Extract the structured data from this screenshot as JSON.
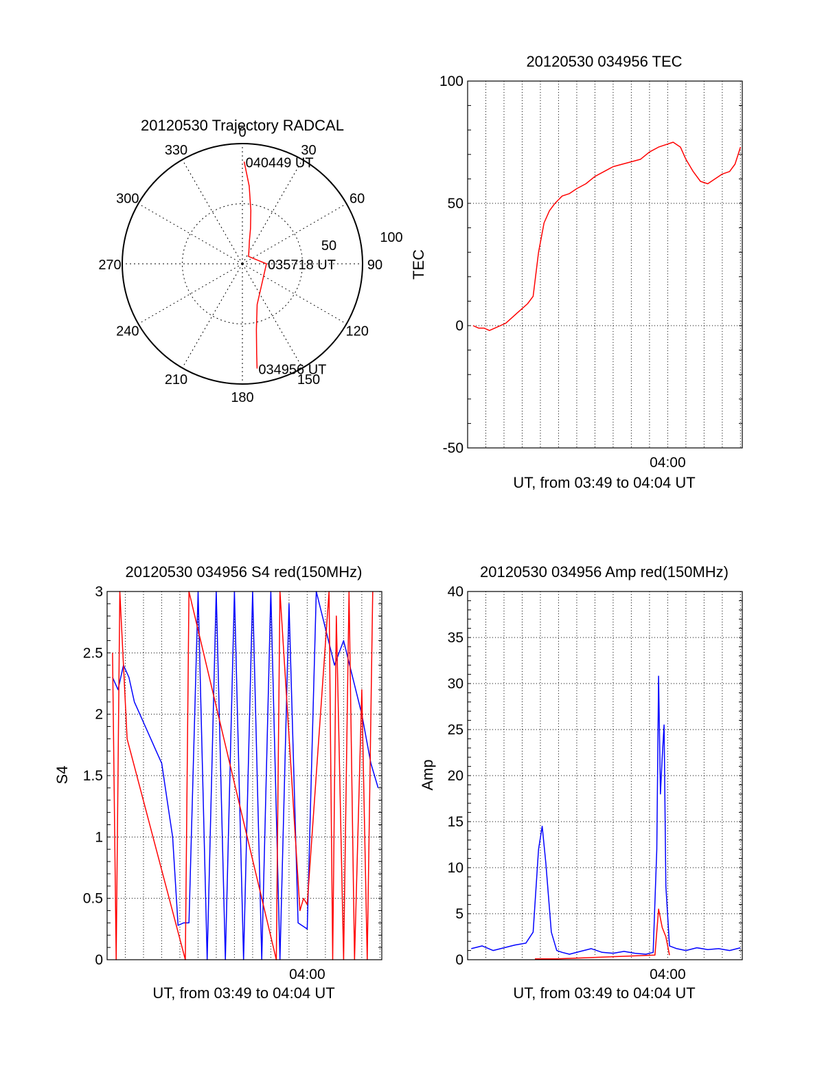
{
  "chart_data": [
    {
      "type": "polar",
      "title": "20120530 Trajectory RADCAL",
      "angle_labels": [
        "0",
        "30",
        "60",
        "90",
        "120",
        "150",
        "180",
        "210",
        "240",
        "270",
        "300",
        "330"
      ],
      "radius_labels": [
        "50",
        "100"
      ],
      "radius_max": 100,
      "trajectory_azimuth_deg": [
        1,
        5,
        9,
        13,
        17,
        22,
        40,
        90,
        160,
        168,
        171,
        172
      ],
      "trajectory_zenith": [
        85,
        65,
        45,
        30,
        20,
        15,
        8,
        20,
        36,
        56,
        76,
        88
      ],
      "trajectory_color": "#ff0000",
      "point_labels": [
        {
          "text": "040449 UT",
          "azimuth_deg": 1,
          "zenith": 85
        },
        {
          "text": "035718 UT",
          "azimuth_deg": 90,
          "zenith": 20
        },
        {
          "text": "034956 UT",
          "azimuth_deg": 172,
          "zenith": 88
        }
      ]
    },
    {
      "type": "line",
      "title": "20120530 034956 TEC",
      "ylabel": "TEC",
      "xlabel": "UT, from 03:49 to 04:04 UT",
      "xtick_labels": [
        {
          "t": 11,
          "label": "04:00"
        }
      ],
      "xlim": [
        0,
        15.1
      ],
      "ylim": [
        -50,
        100
      ],
      "yticks": [
        -50,
        0,
        50,
        100
      ],
      "grid": true,
      "series": [
        {
          "color": "#ff0000",
          "x": [
            0.3,
            0.6,
            0.9,
            1.2,
            1.5,
            1.8,
            2.1,
            2.4,
            2.7,
            3.0,
            3.3,
            3.6,
            3.9,
            4.2,
            4.5,
            4.8,
            5.2,
            5.6,
            6.0,
            6.5,
            7.0,
            7.5,
            8.0,
            8.5,
            9.0,
            9.5,
            10.0,
            10.5,
            10.9,
            11.3,
            11.7,
            12.0,
            12.4,
            12.8,
            13.2,
            13.6,
            14.0,
            14.4,
            14.7,
            15.0
          ],
          "values": [
            0,
            -1,
            -1,
            -2,
            -1,
            0,
            1,
            3,
            5,
            7,
            9,
            12,
            30,
            42,
            47,
            50,
            53,
            54,
            56,
            58,
            61,
            63,
            65,
            66,
            67,
            68,
            71,
            73,
            74,
            75,
            73,
            68,
            63,
            59,
            58,
            60,
            62,
            63,
            66,
            73
          ]
        }
      ]
    },
    {
      "type": "line",
      "title": "20120530 034956 S4 red(150MHz)",
      "ylabel": "S4",
      "xlabel": "UT, from 03:49 to 04:04 UT",
      "xtick_labels": [
        {
          "t": 11,
          "label": "04:00"
        }
      ],
      "xlim": [
        0,
        15.1
      ],
      "ylim": [
        0,
        3
      ],
      "yticks": [
        0,
        0.5,
        1,
        1.5,
        2,
        2.5,
        3
      ],
      "ytick_labels": [
        "0",
        "0.5",
        "1",
        "1.5",
        "2",
        "2.5",
        "3"
      ],
      "grid": true,
      "series": [
        {
          "color": "#0000ff",
          "x": [
            0.3,
            0.6,
            0.9,
            1.2,
            1.5,
            1.8,
            2.1,
            2.4,
            2.7,
            3.0,
            3.3,
            3.6,
            3.9,
            4.2,
            4.5,
            5.0,
            5.5,
            6.0,
            6.5,
            7.0,
            7.5,
            8.0,
            8.5,
            9.0,
            9.5,
            10.0,
            10.5,
            11.0,
            11.5,
            12.0,
            12.5,
            13.0,
            13.5,
            14.0,
            14.5,
            14.9
          ],
          "values": [
            2.3,
            2.2,
            2.4,
            2.3,
            2.1,
            2.0,
            1.9,
            1.8,
            1.7,
            1.6,
            1.3,
            1.0,
            0.28,
            0.3,
            0.3,
            3.0,
            0.0,
            3.0,
            0.0,
            3.0,
            0.0,
            3.0,
            0.0,
            3.0,
            0.0,
            2.9,
            0.3,
            0.25,
            3.0,
            2.7,
            2.4,
            2.6,
            2.3,
            2.0,
            1.6,
            1.4
          ]
        },
        {
          "color": "#ff0000",
          "x": [
            0.3,
            0.5,
            0.7,
            0.9,
            1.1,
            4.3,
            4.5,
            9.3,
            9.5,
            10.6,
            10.8,
            11.0,
            12.2,
            12.4,
            12.6,
            13.0,
            13.3,
            13.6,
            14.0,
            14.3,
            14.6
          ],
          "values": [
            2.5,
            0.0,
            3.0,
            2.4,
            1.8,
            0.0,
            3.0,
            0.0,
            3.0,
            0.4,
            0.5,
            0.45,
            3.0,
            0.0,
            2.8,
            0.0,
            3.0,
            0.0,
            2.2,
            0.0,
            3.0
          ]
        }
      ]
    },
    {
      "type": "line",
      "title": "20120530 034956 Amp red(150MHz)",
      "ylabel": "Amp",
      "xlabel": "UT, from 03:49 to 04:04 UT",
      "xtick_labels": [
        {
          "t": 11,
          "label": "04:00"
        }
      ],
      "xlim": [
        0,
        15.1
      ],
      "ylim": [
        0,
        40
      ],
      "yticks": [
        0,
        5,
        10,
        15,
        20,
        25,
        30,
        35,
        40
      ],
      "grid": true,
      "series": [
        {
          "color": "#0000ff",
          "x": [
            0.2,
            0.8,
            1.4,
            2.0,
            2.6,
            3.2,
            3.6,
            3.9,
            4.1,
            4.3,
            4.6,
            4.9,
            5.2,
            5.6,
            6.2,
            6.8,
            7.4,
            8.0,
            8.6,
            9.2,
            9.8,
            10.2,
            10.4,
            10.5,
            10.6,
            10.7,
            10.8,
            10.9,
            11.1,
            11.5,
            12.0,
            12.6,
            13.2,
            13.8,
            14.4,
            15.0
          ],
          "values": [
            1.2,
            1.5,
            1.0,
            1.3,
            1.6,
            1.8,
            3.0,
            12.0,
            14.5,
            10.5,
            3.0,
            1.0,
            0.8,
            0.6,
            0.9,
            1.2,
            0.8,
            0.7,
            0.9,
            0.7,
            0.6,
            0.8,
            12.0,
            30.8,
            18.0,
            22.0,
            25.5,
            8.0,
            1.5,
            1.2,
            1.0,
            1.3,
            1.1,
            1.2,
            1.0,
            1.3
          ]
        },
        {
          "color": "#ff0000",
          "x": [
            3.7,
            4.0,
            4.3,
            4.6,
            4.9,
            10.3,
            10.5,
            10.7,
            10.9,
            11.1
          ],
          "values": [
            0.1,
            0.1,
            0.1,
            0.1,
            0.1,
            0.5,
            5.5,
            3.5,
            2.5,
            0.5
          ]
        }
      ]
    }
  ]
}
